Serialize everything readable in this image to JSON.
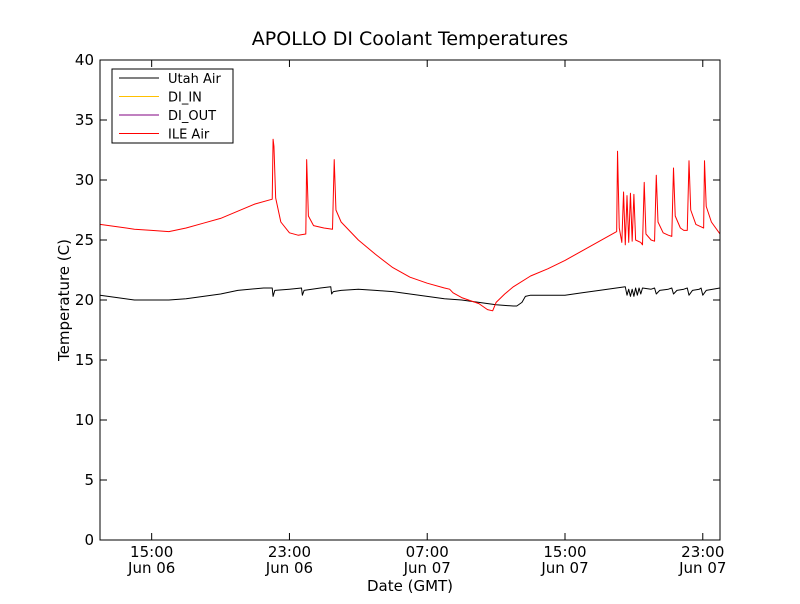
{
  "chart_data": {
    "type": "line",
    "title": "APOLLO DI Coolant Temperatures",
    "xlabel": "Date (GMT)",
    "ylabel": "Temperature (C)",
    "x_unit": "hours since Jun 06 12:00 GMT",
    "xlim": [
      0,
      36
    ],
    "ylim": [
      0,
      40
    ],
    "yticks": [
      0,
      5,
      10,
      15,
      20,
      25,
      30,
      35,
      40
    ],
    "xticks": [
      {
        "value": 3,
        "time": "15:00",
        "date": "Jun 06"
      },
      {
        "value": 11,
        "time": "23:00",
        "date": "Jun 06"
      },
      {
        "value": 19,
        "time": "07:00",
        "date": "Jun 07"
      },
      {
        "value": 27,
        "time": "15:00",
        "date": "Jun 07"
      },
      {
        "value": 35,
        "time": "23:00",
        "date": "Jun 07"
      }
    ],
    "legend_position": "top-left",
    "series": [
      {
        "name": "Utah Air",
        "color": "#000000",
        "points": [
          [
            0,
            20.4
          ],
          [
            1,
            20.2
          ],
          [
            2,
            20.0
          ],
          [
            3,
            20.0
          ],
          [
            4,
            20.0
          ],
          [
            5,
            20.1
          ],
          [
            6,
            20.3
          ],
          [
            7,
            20.5
          ],
          [
            8,
            20.8
          ],
          [
            9.5,
            21.0
          ],
          [
            10,
            21.0
          ],
          [
            10.05,
            20.3
          ],
          [
            10.15,
            20.8
          ],
          [
            11,
            20.9
          ],
          [
            11.7,
            21.0
          ],
          [
            11.75,
            20.4
          ],
          [
            11.85,
            20.8
          ],
          [
            12.8,
            21.0
          ],
          [
            13.4,
            21.1
          ],
          [
            13.45,
            20.5
          ],
          [
            13.55,
            20.7
          ],
          [
            14,
            20.8
          ],
          [
            15,
            20.9
          ],
          [
            16,
            20.8
          ],
          [
            17,
            20.7
          ],
          [
            18,
            20.5
          ],
          [
            19,
            20.3
          ],
          [
            20,
            20.1
          ],
          [
            21,
            20.0
          ],
          [
            22,
            19.8
          ],
          [
            23,
            19.6
          ],
          [
            24,
            19.5
          ],
          [
            24.2,
            19.5
          ],
          [
            24.5,
            19.8
          ],
          [
            24.7,
            20.3
          ],
          [
            25,
            20.4
          ],
          [
            26,
            20.4
          ],
          [
            27,
            20.4
          ],
          [
            28,
            20.6
          ],
          [
            29,
            20.8
          ],
          [
            30.5,
            21.1
          ],
          [
            30.6,
            20.4
          ],
          [
            30.7,
            20.9
          ],
          [
            30.8,
            20.3
          ],
          [
            30.9,
            20.9
          ],
          [
            31.0,
            20.3
          ],
          [
            31.1,
            21.0
          ],
          [
            31.2,
            20.4
          ],
          [
            31.3,
            21.0
          ],
          [
            31.4,
            20.5
          ],
          [
            31.5,
            21.0
          ],
          [
            32,
            20.9
          ],
          [
            32.2,
            21.0
          ],
          [
            32.3,
            20.5
          ],
          [
            32.5,
            20.8
          ],
          [
            33,
            20.9
          ],
          [
            33.2,
            21.0
          ],
          [
            33.3,
            20.5
          ],
          [
            33.5,
            20.8
          ],
          [
            33.9,
            20.9
          ],
          [
            34.1,
            21.0
          ],
          [
            34.2,
            20.4
          ],
          [
            34.4,
            20.8
          ],
          [
            34.8,
            20.9
          ],
          [
            34.9,
            21.0
          ],
          [
            35.0,
            20.4
          ],
          [
            35.2,
            20.8
          ],
          [
            36,
            21.0
          ]
        ]
      },
      {
        "name": "DI_IN",
        "color": "#ffc000",
        "points": []
      },
      {
        "name": "DI_OUT",
        "color": "#800080",
        "points": []
      },
      {
        "name": "ILE Air",
        "color": "#ff0000",
        "points": [
          [
            0,
            26.3
          ],
          [
            1,
            26.1
          ],
          [
            2,
            25.9
          ],
          [
            3,
            25.8
          ],
          [
            4,
            25.7
          ],
          [
            5,
            26.0
          ],
          [
            6,
            26.4
          ],
          [
            7,
            26.8
          ],
          [
            8,
            27.4
          ],
          [
            9,
            28.0
          ],
          [
            10,
            28.4
          ],
          [
            10.05,
            33.4
          ],
          [
            10.1,
            32.8
          ],
          [
            10.2,
            28.5
          ],
          [
            10.5,
            26.5
          ],
          [
            11,
            25.6
          ],
          [
            11.5,
            25.4
          ],
          [
            11.95,
            25.5
          ],
          [
            12,
            31.7
          ],
          [
            12.1,
            27.0
          ],
          [
            12.4,
            26.2
          ],
          [
            13,
            26.0
          ],
          [
            13.5,
            25.9
          ],
          [
            13.6,
            31.7
          ],
          [
            13.7,
            27.5
          ],
          [
            14,
            26.5
          ],
          [
            15,
            25.0
          ],
          [
            16,
            23.8
          ],
          [
            17,
            22.7
          ],
          [
            18,
            21.9
          ],
          [
            19,
            21.4
          ],
          [
            20,
            21.0
          ],
          [
            20.3,
            20.9
          ],
          [
            20.5,
            20.6
          ],
          [
            21,
            20.2
          ],
          [
            22,
            19.7
          ],
          [
            22.5,
            19.2
          ],
          [
            22.8,
            19.1
          ],
          [
            23,
            19.8
          ],
          [
            23.5,
            20.5
          ],
          [
            24,
            21.1
          ],
          [
            25,
            22.0
          ],
          [
            26,
            22.6
          ],
          [
            27,
            23.3
          ],
          [
            28,
            24.1
          ],
          [
            29,
            24.9
          ],
          [
            30,
            25.7
          ],
          [
            30.05,
            32.4
          ],
          [
            30.15,
            26.0
          ],
          [
            30.3,
            24.8
          ],
          [
            30.4,
            29.0
          ],
          [
            30.5,
            24.6
          ],
          [
            30.6,
            28.7
          ],
          [
            30.7,
            24.8
          ],
          [
            30.8,
            28.9
          ],
          [
            30.9,
            24.9
          ],
          [
            31.0,
            28.8
          ],
          [
            31.1,
            25.0
          ],
          [
            31.4,
            24.8
          ],
          [
            31.5,
            24.6
          ],
          [
            31.6,
            29.8
          ],
          [
            31.7,
            25.5
          ],
          [
            32,
            25.0
          ],
          [
            32.2,
            24.9
          ],
          [
            32.3,
            30.4
          ],
          [
            32.4,
            26.5
          ],
          [
            32.7,
            25.6
          ],
          [
            33,
            25.4
          ],
          [
            33.2,
            25.3
          ],
          [
            33.3,
            31.0
          ],
          [
            33.4,
            27.0
          ],
          [
            33.7,
            26.0
          ],
          [
            33.9,
            25.8
          ],
          [
            34.1,
            25.8
          ],
          [
            34.2,
            31.6
          ],
          [
            34.3,
            27.5
          ],
          [
            34.6,
            26.3
          ],
          [
            34.9,
            26.1
          ],
          [
            35.05,
            26.0
          ],
          [
            35.1,
            31.6
          ],
          [
            35.2,
            27.8
          ],
          [
            35.5,
            26.5
          ],
          [
            36,
            25.5
          ]
        ]
      }
    ]
  }
}
